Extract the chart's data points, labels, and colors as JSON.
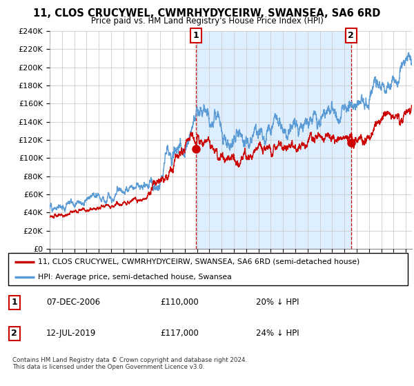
{
  "title": "11, CLOS CRUCYWEL, CWMRHYDYCEIRW, SWANSEA, SA6 6RD",
  "subtitle": "Price paid vs. HM Land Registry's House Price Index (HPI)",
  "legend_line1": "11, CLOS CRUCYWEL, CWMRHYDYCEIRW, SWANSEA, SA6 6RD (semi-detached house)",
  "legend_line2": "HPI: Average price, semi-detached house, Swansea",
  "annotation1_date": "07-DEC-2006",
  "annotation1_price": "£110,000",
  "annotation1_hpi": "20% ↓ HPI",
  "annotation2_date": "12-JUL-2019",
  "annotation2_price": "£117,000",
  "annotation2_hpi": "24% ↓ HPI",
  "footnote": "Contains HM Land Registry data © Crown copyright and database right 2024.\nThis data is licensed under the Open Government Licence v3.0.",
  "hpi_color": "#5b9bd5",
  "price_color": "#cc0000",
  "marker_color": "#cc0000",
  "vline_color": "#cc0000",
  "shade_color": "#ddeeff",
  "ylim": [
    0,
    240000
  ],
  "yticks": [
    0,
    20000,
    40000,
    60000,
    80000,
    100000,
    120000,
    140000,
    160000,
    180000,
    200000,
    220000,
    240000
  ],
  "sale1_x": 2006.917,
  "sale1_y": 110000,
  "sale2_x": 2019.542,
  "sale2_y": 117000,
  "xmin": 1995,
  "xmax": 2024.5
}
